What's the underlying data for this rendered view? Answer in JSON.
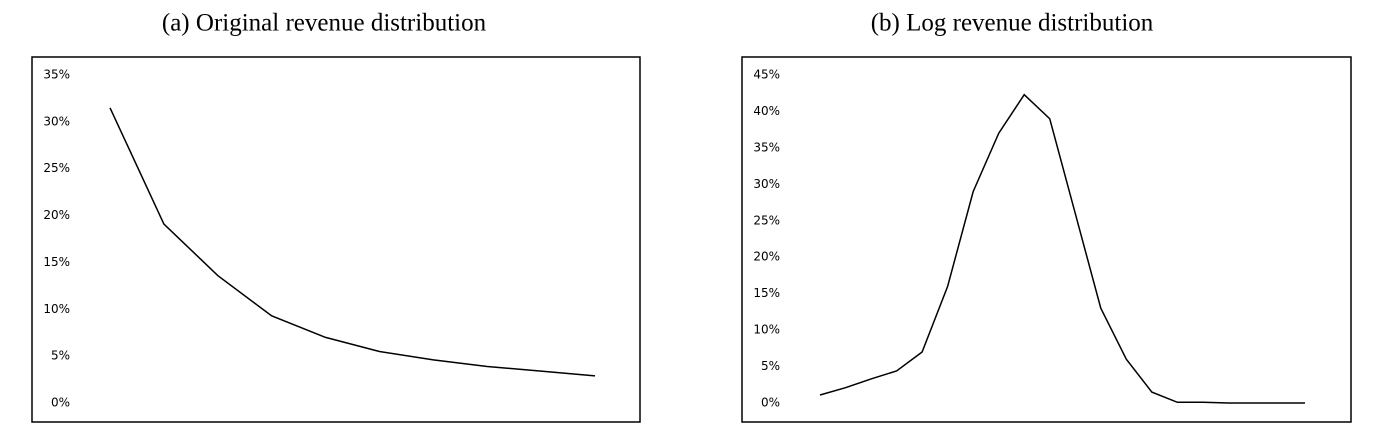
{
  "chart_data": [
    {
      "type": "line",
      "title": "(a) Original revenue distribution",
      "values": [
        31.5,
        19.1,
        13.6,
        9.3,
        7.0,
        5.5,
        4.6,
        3.9,
        3.4,
        2.9
      ],
      "color": "#000000",
      "ylim": [
        0,
        35
      ],
      "yticks": [
        {
          "value": 0,
          "label": "0%"
        },
        {
          "value": 5,
          "label": "5%"
        },
        {
          "value": 10,
          "label": "10%"
        },
        {
          "value": 15,
          "label": "15%"
        },
        {
          "value": 20,
          "label": "20%"
        },
        {
          "value": 25,
          "label": "25%"
        },
        {
          "value": 30,
          "label": "30%"
        },
        {
          "value": 35,
          "label": "35%"
        }
      ],
      "grid": false
    },
    {
      "type": "line",
      "title": "(b) Log revenue distribution",
      "values": [
        1.1,
        2.1,
        3.3,
        4.4,
        7.0,
        16,
        29,
        37,
        42.3,
        39,
        26,
        13,
        6,
        1.5,
        0.1,
        0.1,
        0,
        0,
        0,
        0
      ],
      "color": "#000000",
      "ylim": [
        0,
        45
      ],
      "yticks": [
        {
          "value": 0,
          "label": "0%"
        },
        {
          "value": 5,
          "label": "5%"
        },
        {
          "value": 10,
          "label": "10%"
        },
        {
          "value": 15,
          "label": "15%"
        },
        {
          "value": 20,
          "label": "20%"
        },
        {
          "value": 25,
          "label": "25%"
        },
        {
          "value": 30,
          "label": "30%"
        },
        {
          "value": 35,
          "label": "35%"
        },
        {
          "value": 40,
          "label": "40%"
        },
        {
          "value": 45,
          "label": "45%"
        }
      ],
      "grid": false
    }
  ]
}
